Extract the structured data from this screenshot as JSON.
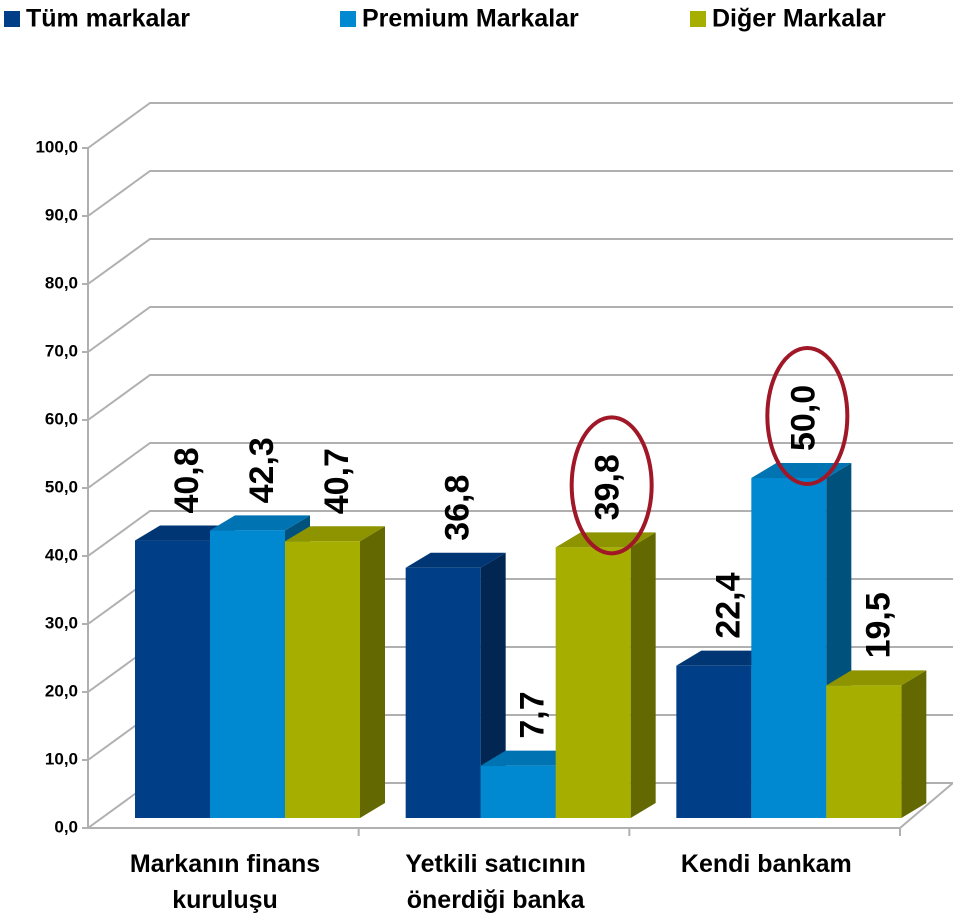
{
  "chart_data": {
    "type": "bar3d",
    "categories": [
      "Markanın finans kuruluşu",
      "Yetkili satıcının önerdiği banka",
      "Kendi bankam"
    ],
    "series": [
      {
        "name": "Tüm markalar",
        "color": "#003f87",
        "values": [
          40.8,
          36.8,
          22.4
        ],
        "value_labels": [
          "40,8",
          "36,8",
          "22,4"
        ]
      },
      {
        "name": "Premium Markalar",
        "color": "#0088d1",
        "values": [
          42.3,
          7.7,
          50.0
        ],
        "value_labels": [
          "42,3",
          "7,7",
          "50,0"
        ]
      },
      {
        "name": "Diğer Markalar",
        "color": "#a6ae00",
        "values": [
          40.7,
          39.8,
          19.5
        ],
        "value_labels": [
          "40,7",
          "39,8",
          "19,5"
        ]
      }
    ],
    "ylim": [
      0,
      100
    ],
    "yticks": [
      {
        "value": 0,
        "label": "0,0"
      },
      {
        "value": 10,
        "label": "10,0"
      },
      {
        "value": 20,
        "label": "20,0"
      },
      {
        "value": 30,
        "label": "30,0"
      },
      {
        "value": 40,
        "label": "40,0"
      },
      {
        "value": 50,
        "label": "50,0"
      },
      {
        "value": 60,
        "label": "60,0"
      },
      {
        "value": 70,
        "label": "70,0"
      },
      {
        "value": 80,
        "label": "80,0"
      },
      {
        "value": 90,
        "label": "90,0"
      },
      {
        "value": 100,
        "label": "100,0"
      }
    ],
    "grid": true,
    "legend": "top",
    "highlights": [
      {
        "series": 2,
        "index": 1
      },
      {
        "series": 1,
        "index": 2
      }
    ]
  }
}
